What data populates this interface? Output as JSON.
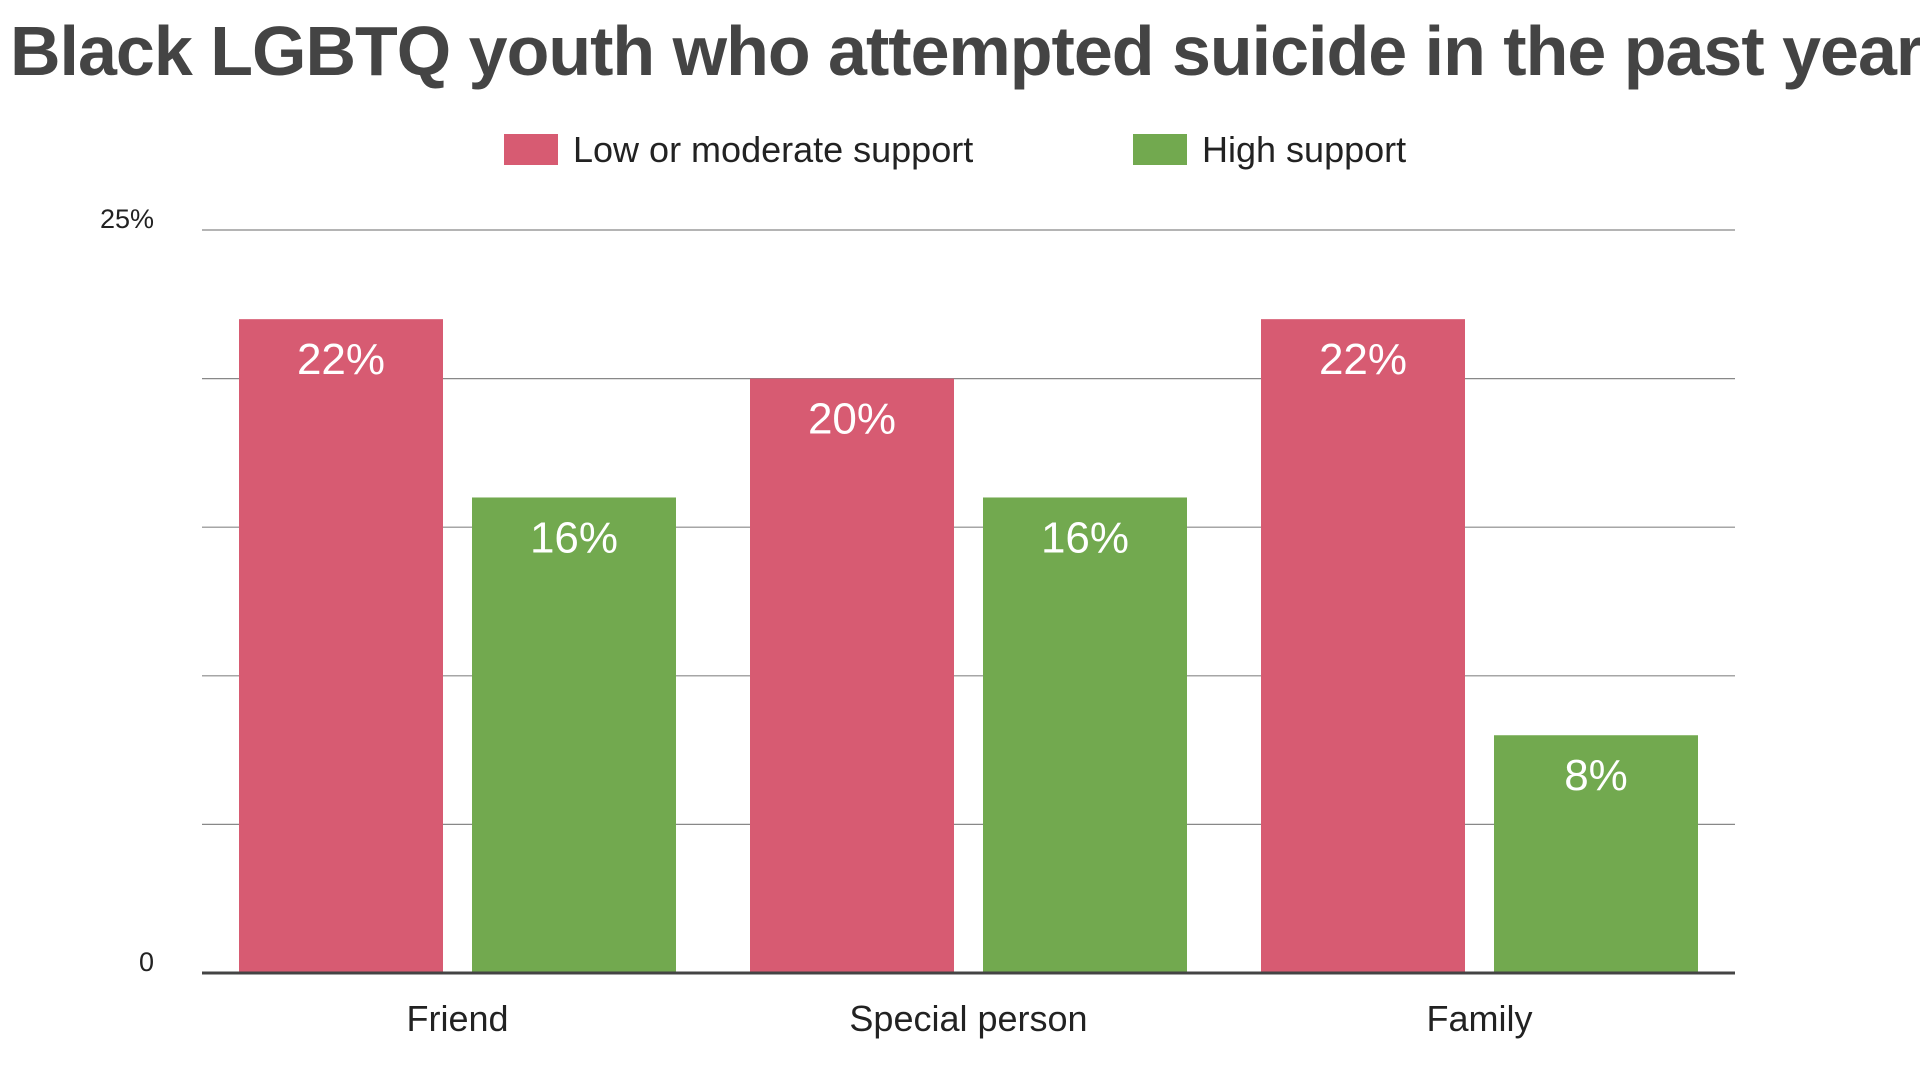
{
  "chart_data": {
    "type": "bar",
    "title": "Black LGBTQ youth who attempted suicide in the past year",
    "categories": [
      "Friend",
      "Special person",
      "Family"
    ],
    "series": [
      {
        "name": "Low or moderate support",
        "color": "#d75b72",
        "values": [
          22,
          20,
          22
        ],
        "labels": [
          "22%",
          "20%",
          "22%"
        ]
      },
      {
        "name": "High support",
        "color": "#72a94f",
        "values": [
          16,
          16,
          8
        ],
        "labels": [
          "16%",
          "16%",
          "8%"
        ]
      }
    ],
    "ylim": [
      0,
      25
    ],
    "y_tick_labels": [
      {
        "value": 0,
        "label": "0"
      },
      {
        "value": 25,
        "label": "25%"
      }
    ],
    "gridlines": [
      5,
      10,
      15,
      20,
      25
    ],
    "grid": true,
    "legend_position": "top-center",
    "xlabel": "",
    "ylabel": ""
  }
}
